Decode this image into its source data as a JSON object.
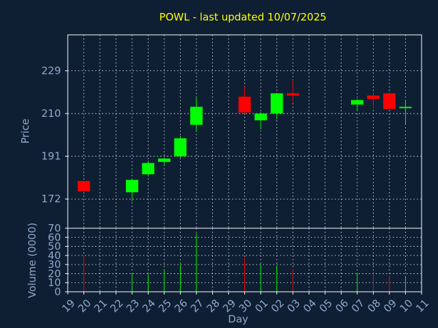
{
  "chart_data": {
    "type": "candlestick",
    "title": "POWL - last updated 10/07/2025",
    "colors": {
      "background": "#0f1f33",
      "up": "#00ff00",
      "down": "#ff0000",
      "text": "#8fa8cc",
      "title": "#ffff00",
      "grid": "#ffffff"
    },
    "price_panel": {
      "ylabel": "Price",
      "ylim": [
        159,
        245
      ],
      "yticks": [
        172,
        191,
        210,
        229
      ],
      "grid": true
    },
    "volume_panel": {
      "ylabel": "Volume (0000)",
      "ylim": [
        0,
        70
      ],
      "yticks": [
        0,
        10,
        20,
        30,
        40,
        50,
        60,
        70
      ],
      "grid": true
    },
    "xlabel": "Day",
    "x_tick_labels": [
      "19",
      "20",
      "21",
      "22",
      "23",
      "24",
      "25",
      "26",
      "27",
      "28",
      "29",
      "30",
      "01",
      "02",
      "03",
      "04",
      "05",
      "06",
      "07",
      "08",
      "09",
      "10",
      "11"
    ],
    "candles": [
      {
        "day": "20",
        "open": 180,
        "high": 180,
        "low": 175,
        "close": 175.5,
        "volume": 40
      },
      {
        "day": "23",
        "open": 175,
        "high": 181,
        "low": 171,
        "close": 180.5,
        "volume": 20
      },
      {
        "day": "24",
        "open": 183,
        "high": 189,
        "low": 182,
        "close": 188,
        "volume": 19
      },
      {
        "day": "25",
        "open": 188.5,
        "high": 190.5,
        "low": 187,
        "close": 190,
        "volume": 24
      },
      {
        "day": "26",
        "open": 191,
        "high": 200,
        "low": 190.5,
        "close": 199,
        "volume": 30
      },
      {
        "day": "27",
        "open": 205,
        "high": 217,
        "low": 202,
        "close": 213,
        "volume": 64
      },
      {
        "day": "30",
        "open": 217.5,
        "high": 222,
        "low": 210,
        "close": 210.5,
        "volume": 37
      },
      {
        "day": "01",
        "open": 207,
        "high": 210.5,
        "low": 203,
        "close": 210,
        "volume": 30
      },
      {
        "day": "02",
        "open": 210,
        "high": 219,
        "low": 207.5,
        "close": 219,
        "volume": 29
      },
      {
        "day": "03",
        "open": 219,
        "high": 225,
        "low": 215,
        "close": 218,
        "volume": 25
      },
      {
        "day": "07",
        "open": 214,
        "high": 216.5,
        "low": 211,
        "close": 216,
        "volume": 21
      },
      {
        "day": "08",
        "open": 218,
        "high": 219.5,
        "low": 212,
        "close": 216.5,
        "volume": 20
      },
      {
        "day": "09",
        "open": 219,
        "high": 219.5,
        "low": 212,
        "close": 212,
        "volume": 17
      },
      {
        "day": "10",
        "open": 212.5,
        "high": 215.5,
        "low": 205.5,
        "close": 213,
        "volume": 17
      }
    ]
  }
}
